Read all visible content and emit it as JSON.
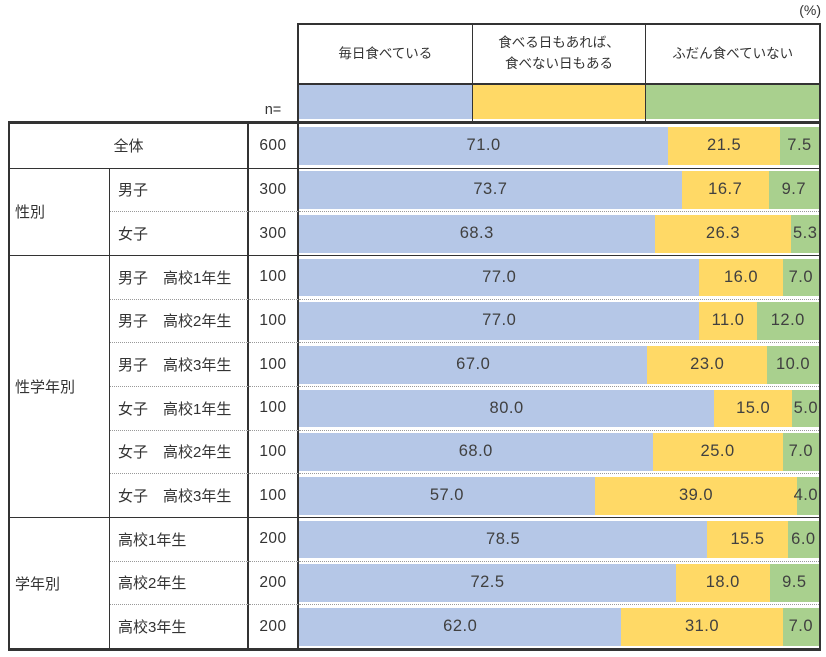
{
  "unit_label": "(%)",
  "n_caption": "n=",
  "legend": [
    "毎日食べている",
    "食べる日もあれば、\n食べない日もある",
    "ふだん食べていない"
  ],
  "colors": {
    "series": [
      "#B5C7E7",
      "#FFD966",
      "#A9D08E"
    ],
    "border": "#333333",
    "dotted_separator": "#999999",
    "text": "#404040"
  },
  "chart_data": {
    "type": "bar",
    "stacked": true,
    "orientation": "horizontal",
    "unit": "%",
    "xlim": [
      0,
      100
    ],
    "legend_position": "top",
    "series_names": [
      "毎日食べている",
      "食べる日もあれば、食べない日もある",
      "ふだん食べていない"
    ],
    "groups": [
      {
        "name": "性別",
        "start": 1,
        "span": 2
      },
      {
        "name": "性学年別",
        "start": 3,
        "span": 6
      },
      {
        "name": "学年別",
        "start": 9,
        "span": 3
      }
    ],
    "rows": [
      {
        "group": "",
        "label": "全体",
        "n": 600,
        "values": [
          71.0,
          21.5,
          7.5
        ]
      },
      {
        "group": "性別",
        "label": "男子",
        "n": 300,
        "values": [
          73.7,
          16.7,
          9.7
        ]
      },
      {
        "group": "性別",
        "label": "女子",
        "n": 300,
        "values": [
          68.3,
          26.3,
          5.3
        ]
      },
      {
        "group": "性学年別",
        "label": "男子　高校1年生",
        "n": 100,
        "values": [
          77.0,
          16.0,
          7.0
        ]
      },
      {
        "group": "性学年別",
        "label": "男子　高校2年生",
        "n": 100,
        "values": [
          77.0,
          11.0,
          12.0
        ]
      },
      {
        "group": "性学年別",
        "label": "男子　高校3年生",
        "n": 100,
        "values": [
          67.0,
          23.0,
          10.0
        ]
      },
      {
        "group": "性学年別",
        "label": "女子　高校1年生",
        "n": 100,
        "values": [
          80.0,
          15.0,
          5.0
        ]
      },
      {
        "group": "性学年別",
        "label": "女子　高校2年生",
        "n": 100,
        "values": [
          68.0,
          25.0,
          7.0
        ]
      },
      {
        "group": "性学年別",
        "label": "女子　高校3年生",
        "n": 100,
        "values": [
          57.0,
          39.0,
          4.0
        ]
      },
      {
        "group": "学年別",
        "label": "高校1年生",
        "n": 200,
        "values": [
          78.5,
          15.5,
          6.0
        ]
      },
      {
        "group": "学年別",
        "label": "高校2年生",
        "n": 200,
        "values": [
          72.5,
          18.0,
          9.5
        ]
      },
      {
        "group": "学年別",
        "label": "高校3年生",
        "n": 200,
        "values": [
          62.0,
          31.0,
          7.0
        ]
      }
    ]
  }
}
